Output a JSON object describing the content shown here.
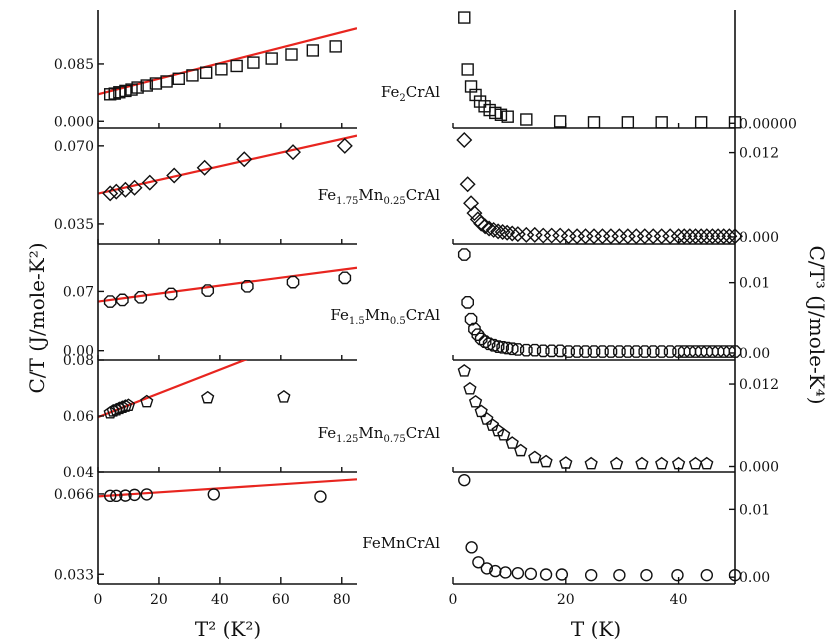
{
  "figure": {
    "left_ylabel": "C/T (J/mole-K²)",
    "right_ylabel": "C/T³ (J/mole-K⁴)",
    "left_xlabel": "T² (K²)",
    "right_xlabel": "T (K)",
    "colors": {
      "fit": "#e8251f",
      "axis": "#111111",
      "marker": "#111111"
    }
  },
  "chart_data": [
    {
      "type": "scatter",
      "label_parts": [
        "Fe",
        "2",
        "CrAl"
      ],
      "marker": "square",
      "left": {
        "xlim": [
          0,
          85
        ],
        "ylim": [
          -0.01,
          0.165
        ],
        "yticks": [
          0.0,
          0.085
        ],
        "ytick_labels": [
          "0.000",
          "0.085"
        ],
        "points": [
          [
            4,
            0.04
          ],
          [
            5.5,
            0.041
          ],
          [
            7,
            0.043
          ],
          [
            9,
            0.045
          ],
          [
            11,
            0.047
          ],
          [
            13,
            0.05
          ],
          [
            16,
            0.053
          ],
          [
            19,
            0.056
          ],
          [
            22.5,
            0.059
          ],
          [
            26.5,
            0.063
          ],
          [
            31,
            0.068
          ],
          [
            35.5,
            0.072
          ],
          [
            40.5,
            0.077
          ],
          [
            45.5,
            0.082
          ],
          [
            51,
            0.087
          ],
          [
            57,
            0.093
          ],
          [
            63.5,
            0.099
          ],
          [
            70.5,
            0.105
          ],
          [
            78,
            0.111
          ]
        ],
        "fit": [
          [
            0,
            0.04
          ],
          [
            85,
            0.138
          ]
        ]
      },
      "right": {
        "xlim": [
          0,
          50
        ],
        "ylim": [
          -5e-05,
          0.0012
        ],
        "yticks": [
          0.0
        ],
        "ytick_labels": [
          "0.00000"
        ],
        "points": [
          [
            2,
            0.00112
          ],
          [
            2.6,
            0.00057
          ],
          [
            3.2,
            0.00039
          ],
          [
            4,
            0.0003
          ],
          [
            4.8,
            0.00023
          ],
          [
            5.6,
            0.00018
          ],
          [
            6.5,
            0.00014
          ],
          [
            7.5,
            0.00011
          ],
          [
            8.5,
            9e-05
          ],
          [
            9.7,
            7e-05
          ],
          [
            13,
            4e-05
          ],
          [
            19,
            2e-05
          ],
          [
            25,
            1e-05
          ],
          [
            31,
            1e-05
          ],
          [
            37,
            1e-05
          ],
          [
            44,
            1e-05
          ],
          [
            50,
            1e-05
          ]
        ]
      }
    },
    {
      "type": "scatter",
      "label_parts": [
        "Fe",
        "1.75",
        "Mn",
        "0.25",
        "CrAl"
      ],
      "marker": "diamond",
      "left": {
        "xlim": [
          0,
          85
        ],
        "ylim": [
          0.026,
          0.078
        ],
        "yticks": [
          0.035,
          0.07
        ],
        "ytick_labels": [
          "0.035",
          "0.070"
        ],
        "points": [
          [
            4,
            0.0487
          ],
          [
            6,
            0.0495
          ],
          [
            9,
            0.0503
          ],
          [
            12,
            0.0512
          ],
          [
            17,
            0.0535
          ],
          [
            25,
            0.0567
          ],
          [
            35,
            0.0602
          ],
          [
            48,
            0.064
          ],
          [
            64,
            0.0672
          ],
          [
            81,
            0.07
          ]
        ],
        "fit": [
          [
            0,
            0.0486
          ],
          [
            85,
            0.0746
          ]
        ]
      },
      "right": {
        "xlim": [
          0,
          50
        ],
        "ylim": [
          -0.001,
          0.0155
        ],
        "yticks": [
          0.0,
          0.012
        ],
        "ytick_labels": [
          "0.000",
          "0.012"
        ],
        "points": [
          [
            2,
            0.0138
          ],
          [
            2.6,
            0.0075
          ],
          [
            3.2,
            0.0048
          ],
          [
            3.8,
            0.0034
          ],
          [
            4.4,
            0.0025
          ],
          [
            5,
            0.0019
          ],
          [
            5.7,
            0.0015
          ],
          [
            6.4,
            0.0012
          ],
          [
            7.2,
            0.001
          ],
          [
            8,
            0.0008
          ],
          [
            8.8,
            0.0007
          ],
          [
            9.6,
            0.0006
          ],
          [
            10.5,
            0.0005
          ],
          [
            11.5,
            0.0004
          ],
          [
            13,
            0.0003
          ],
          [
            14.5,
            0.0003
          ],
          [
            16,
            0.0002
          ],
          [
            17.5,
            0.0002
          ],
          [
            19,
            0.0002
          ],
          [
            20.5,
            0.0001
          ],
          [
            22,
            0.0001
          ],
          [
            23.5,
            0.0001
          ],
          [
            25,
            0.0001
          ],
          [
            26.5,
            0.0001
          ],
          [
            28,
            0.0001
          ],
          [
            29.5,
            0.0001
          ],
          [
            31,
            0.0001
          ],
          [
            32.5,
            0.0001
          ],
          [
            34,
            0.0001
          ],
          [
            35.5,
            0.0001
          ],
          [
            37,
            0.0001
          ],
          [
            38.5,
            0.0001
          ],
          [
            40,
            0.0001
          ],
          [
            41,
            0.0001
          ],
          [
            42,
            0.0001
          ],
          [
            43,
            0.0001
          ],
          [
            44,
            0.0001
          ],
          [
            45,
            0.0001
          ],
          [
            46,
            0.0001
          ],
          [
            47,
            0.0001
          ],
          [
            48,
            0.0001
          ],
          [
            49,
            0.0001
          ],
          [
            50,
            0.0001
          ]
        ]
      }
    },
    {
      "type": "scatter",
      "label_parts": [
        "Fe",
        "1.5",
        "Mn",
        "0.5",
        "CrAl"
      ],
      "marker": "octagon",
      "left": {
        "xlim": [
          0,
          85
        ],
        "ylim": [
          -0.011,
          0.126
        ],
        "yticks": [
          0.0,
          0.07
        ],
        "ytick_labels": [
          "0.00",
          "0.07"
        ],
        "points": [
          [
            4,
            0.058
          ],
          [
            8,
            0.06
          ],
          [
            14,
            0.063
          ],
          [
            24,
            0.067
          ],
          [
            36,
            0.071
          ],
          [
            49,
            0.076
          ],
          [
            64,
            0.081
          ],
          [
            81,
            0.086
          ]
        ],
        "fit": [
          [
            0,
            0.058
          ],
          [
            85,
            0.098
          ]
        ]
      },
      "right": {
        "xlim": [
          0,
          50
        ],
        "ylim": [
          -0.001,
          0.0155
        ],
        "yticks": [
          0.0,
          0.01
        ],
        "ytick_labels": [
          "0.00",
          "0.01"
        ],
        "points": [
          [
            2,
            0.014
          ],
          [
            2.6,
            0.0072
          ],
          [
            3.2,
            0.0048
          ],
          [
            3.8,
            0.0034
          ],
          [
            4.4,
            0.0026
          ],
          [
            5,
            0.002
          ],
          [
            5.7,
            0.0016
          ],
          [
            6.4,
            0.0013
          ],
          [
            7.2,
            0.0011
          ],
          [
            8,
            0.0009
          ],
          [
            8.8,
            0.0008
          ],
          [
            9.6,
            0.0007
          ],
          [
            10.5,
            0.0006
          ],
          [
            11.5,
            0.0005
          ],
          [
            13,
            0.0004
          ],
          [
            14.5,
            0.0004
          ],
          [
            16,
            0.0003
          ],
          [
            17.5,
            0.0003
          ],
          [
            19,
            0.0003
          ],
          [
            20.5,
            0.0002
          ],
          [
            22,
            0.0002
          ],
          [
            23.5,
            0.0002
          ],
          [
            25,
            0.0002
          ],
          [
            26.5,
            0.0002
          ],
          [
            28,
            0.0002
          ],
          [
            29.5,
            0.0002
          ],
          [
            31,
            0.0002
          ],
          [
            32.5,
            0.0002
          ],
          [
            34,
            0.0002
          ],
          [
            35.5,
            0.0002
          ],
          [
            37,
            0.0002
          ],
          [
            38.5,
            0.0002
          ],
          [
            40,
            0.0002
          ],
          [
            41,
            0.0002
          ],
          [
            42,
            0.0002
          ],
          [
            43,
            0.0002
          ],
          [
            44,
            0.0002
          ],
          [
            45,
            0.0002
          ],
          [
            46,
            0.0002
          ],
          [
            47,
            0.0002
          ],
          [
            48,
            0.0002
          ],
          [
            49,
            0.0002
          ],
          [
            50,
            0.0002
          ]
        ]
      }
    },
    {
      "type": "scatter",
      "label_parts": [
        "Fe",
        "1.25",
        "Mn",
        "0.75",
        "CrAl"
      ],
      "marker": "pentagon",
      "left": {
        "xlim": [
          0,
          85
        ],
        "ylim": [
          0.04,
          0.08
        ],
        "yticks": [
          0.04,
          0.06,
          0.08
        ],
        "ytick_labels": [
          "0.04",
          "0.06",
          "0.08"
        ],
        "points": [
          [
            4,
            0.0611
          ],
          [
            5,
            0.0618
          ],
          [
            6,
            0.0622
          ],
          [
            7,
            0.0627
          ],
          [
            8,
            0.0631
          ],
          [
            9,
            0.0635
          ],
          [
            10,
            0.0638
          ],
          [
            16,
            0.0651
          ],
          [
            36,
            0.0665
          ],
          [
            61,
            0.0668
          ]
        ],
        "fit": [
          [
            0,
            0.0596
          ],
          [
            50,
            0.0808
          ]
        ]
      },
      "right": {
        "xlim": [
          0,
          50
        ],
        "ylim": [
          -0.0008,
          0.0155
        ],
        "yticks": [
          0.0,
          0.012
        ],
        "ytick_labels": [
          "0.000",
          "0.012"
        ],
        "points": [
          [
            2,
            0.0139
          ],
          [
            3,
            0.0113
          ],
          [
            4,
            0.0094
          ],
          [
            5,
            0.008
          ],
          [
            6,
            0.0069
          ],
          [
            7,
            0.006
          ],
          [
            8,
            0.0052
          ],
          [
            9,
            0.0046
          ],
          [
            10.5,
            0.0034
          ],
          [
            12,
            0.0023
          ],
          [
            14.5,
            0.0013
          ],
          [
            16.5,
            0.0007
          ],
          [
            20,
            0.0005
          ],
          [
            24.5,
            0.0004
          ],
          [
            29,
            0.0004
          ],
          [
            33.5,
            0.0004
          ],
          [
            37,
            0.0004
          ],
          [
            40,
            0.0004
          ],
          [
            43,
            0.0004
          ],
          [
            45,
            0.0004
          ]
        ]
      }
    },
    {
      "type": "scatter",
      "label_parts": [
        "FeMnCrAl"
      ],
      "marker": "circle",
      "left": {
        "xlim": [
          0,
          85
        ],
        "ylim": [
          0.029,
          0.075
        ],
        "yticks": [
          0.033,
          0.066
        ],
        "ytick_labels": [
          "0.033",
          "0.066"
        ],
        "points": [
          [
            4,
            0.0652
          ],
          [
            6,
            0.0652
          ],
          [
            9,
            0.0653
          ],
          [
            12,
            0.0656
          ],
          [
            16,
            0.0658
          ],
          [
            38,
            0.0658
          ],
          [
            73,
            0.0649
          ]
        ],
        "fit": [
          [
            0,
            0.065
          ],
          [
            85,
            0.072
          ]
        ]
      },
      "right": {
        "xlim": [
          0,
          50
        ],
        "ylim": [
          -0.001,
          0.0155
        ],
        "yticks": [
          0.0,
          0.01
        ],
        "ytick_labels": [
          "0.00",
          "0.01"
        ],
        "points": [
          [
            2,
            0.0143
          ],
          [
            3.3,
            0.0044
          ],
          [
            4.5,
            0.0022
          ],
          [
            6,
            0.0013
          ],
          [
            7.5,
            0.0009
          ],
          [
            9.3,
            0.0007
          ],
          [
            11.5,
            0.0006
          ],
          [
            13.8,
            0.0005
          ],
          [
            16.5,
            0.0004
          ],
          [
            19.3,
            0.0004
          ],
          [
            24.5,
            0.0003
          ],
          [
            29.5,
            0.0003
          ],
          [
            34.3,
            0.0003
          ],
          [
            39.8,
            0.0003
          ],
          [
            45,
            0.0003
          ],
          [
            50,
            0.0003
          ]
        ]
      }
    }
  ],
  "x_axes": {
    "left": {
      "ticks": [
        0,
        20,
        40,
        60,
        80
      ],
      "labels": [
        "0",
        "20",
        "40",
        "60",
        "80"
      ]
    },
    "right": {
      "ticks": [
        0,
        20,
        40
      ],
      "labels": [
        "0",
        "20",
        "40"
      ]
    }
  }
}
